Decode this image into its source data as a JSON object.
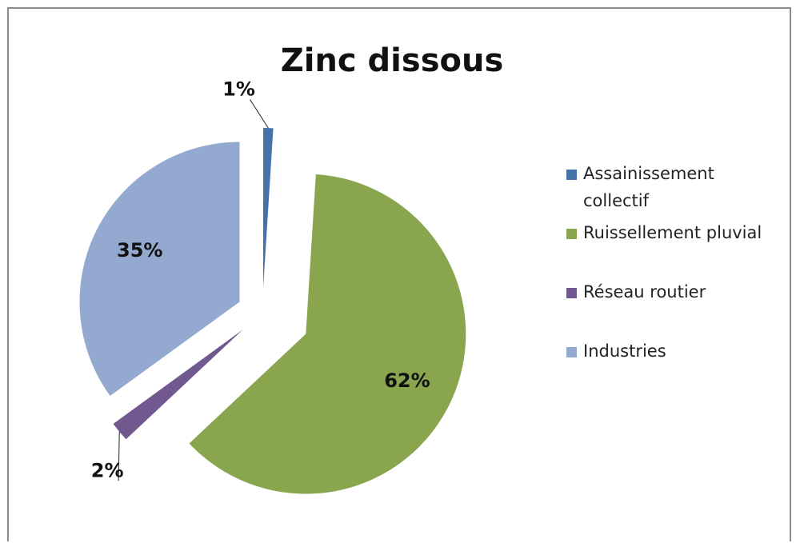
{
  "chart_data": {
    "type": "pie",
    "title": "Zinc dissous",
    "categories": [
      "Assainissement collectif",
      "Ruissellement pluvial",
      "Réseau routier",
      "Industries"
    ],
    "values": [
      1,
      62,
      2,
      35
    ],
    "value_labels": [
      "1%",
      "62%",
      "2%",
      "35%"
    ],
    "colors": [
      "#4572a7",
      "#89a54e",
      "#71588f",
      "#93a9cf"
    ],
    "legend": "right"
  }
}
